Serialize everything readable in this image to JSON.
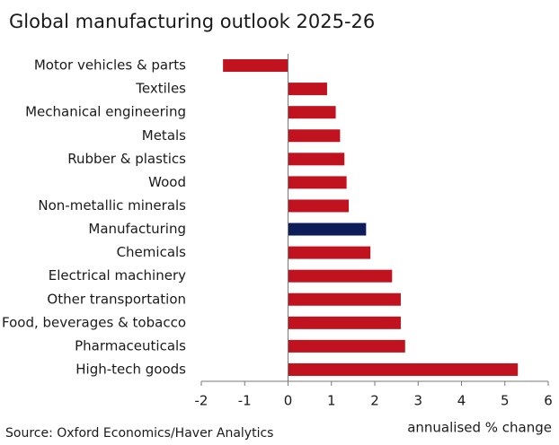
{
  "chart_data": {
    "type": "bar",
    "orientation": "horizontal",
    "title": "Global manufacturing outlook 2025-26",
    "categories": [
      "Motor vehicles & parts",
      "Textiles",
      "Mechanical engineering",
      "Metals",
      "Rubber & plastics",
      "Wood",
      "Non-metallic minerals",
      "Manufacturing",
      "Chemicals",
      "Electrical machinery",
      "Other transportation",
      "Food, beverages & tobacco",
      "Pharmaceuticals",
      "High-tech goods"
    ],
    "values": [
      -1.5,
      0.9,
      1.1,
      1.2,
      1.3,
      1.35,
      1.4,
      1.8,
      1.9,
      2.4,
      2.6,
      2.6,
      2.7,
      5.3
    ],
    "colors": [
      "#c0131f",
      "#c0131f",
      "#c0131f",
      "#c0131f",
      "#c0131f",
      "#c0131f",
      "#c0131f",
      "#0c1d5a",
      "#c0131f",
      "#c0131f",
      "#c0131f",
      "#c0131f",
      "#c0131f",
      "#c0131f"
    ],
    "xlim": [
      -2,
      6
    ],
    "xticks": [
      -2,
      -1,
      0,
      1,
      2,
      3,
      4,
      5,
      6
    ],
    "xlabel": "annualised % change",
    "source": "Source: Oxford Economics/Haver Analytics"
  }
}
